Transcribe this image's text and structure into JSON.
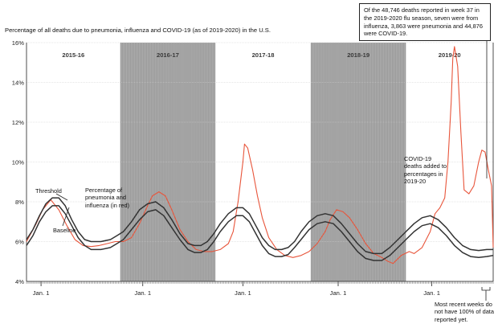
{
  "subtitle": "Percentage of all deaths due to pneumonia, influenza and COVID-19 (as of 2019-2020) in the U.S.",
  "annotation_top": "Of the 48,746 deaths reported in week 37 in the 2019-2020 flu season, seven were from influenza, 3,863 were pneumonia and 44,876 were COVID-19.",
  "annotation_covid": "COVID-19 deaths added to percentages in 2019-20",
  "annotation_recent": "Most recent weeks do not have 100% of data reported yet.",
  "label_threshold": "Threshold",
  "label_baseline": "Baseline",
  "label_percentage": "Percentage of pneumonia and influenza (in red)",
  "colors": {
    "shade": "#9a9a9a",
    "red": "#e8553b",
    "dark": "#333333",
    "grid": "#cccccc"
  },
  "chart_data": {
    "type": "line",
    "x": "weeks 0-288 (approximately weekly, 2015-16 through 2019-20 seasons)",
    "ylim": [
      4,
      16
    ],
    "y_ticks": [
      "4%",
      "6%",
      "8%",
      "10%",
      "12%",
      "14%",
      "16%"
    ],
    "x_tick_labels": [
      "Jan. 1",
      "Jan. 1",
      "Jan. 1",
      "Jan. 1",
      "Jan. 1"
    ],
    "seasons": [
      "2015-16",
      "2016-17",
      "2017-18",
      "2018-19",
      "2019-20"
    ],
    "shaded_seasons": [
      "2016-17",
      "2018-19"
    ],
    "season_boundary_weeks": [
      0,
      58,
      117,
      176,
      235,
      289
    ],
    "jan1_weeks": [
      9,
      72,
      134,
      193,
      251
    ],
    "series": [
      {
        "name": "Percentage of pneumonia and influenza (in red)",
        "points": [
          [
            0,
            6.0
          ],
          [
            6,
            6.9
          ],
          [
            10,
            7.6
          ],
          [
            15,
            8.1
          ],
          [
            20,
            7.6
          ],
          [
            25,
            6.8
          ],
          [
            30,
            6.1
          ],
          [
            35,
            5.8
          ],
          [
            40,
            5.75
          ],
          [
            45,
            5.8
          ],
          [
            50,
            5.9
          ],
          [
            55,
            6.0
          ],
          [
            60,
            6.0
          ],
          [
            65,
            6.2
          ],
          [
            70,
            6.9
          ],
          [
            75,
            7.8
          ],
          [
            78,
            8.3
          ],
          [
            82,
            8.5
          ],
          [
            86,
            8.3
          ],
          [
            90,
            7.6
          ],
          [
            95,
            6.6
          ],
          [
            100,
            6.0
          ],
          [
            105,
            5.6
          ],
          [
            110,
            5.5
          ],
          [
            115,
            5.5
          ],
          [
            120,
            5.6
          ],
          [
            125,
            5.9
          ],
          [
            128,
            6.5
          ],
          [
            131,
            8.0
          ],
          [
            134,
            10.0
          ],
          [
            135,
            10.9
          ],
          [
            137,
            10.7
          ],
          [
            140,
            9.6
          ],
          [
            143,
            8.3
          ],
          [
            146,
            7.2
          ],
          [
            150,
            6.2
          ],
          [
            155,
            5.6
          ],
          [
            160,
            5.3
          ],
          [
            165,
            5.2
          ],
          [
            170,
            5.3
          ],
          [
            175,
            5.5
          ],
          [
            180,
            5.9
          ],
          [
            185,
            6.5
          ],
          [
            188,
            7.1
          ],
          [
            192,
            7.6
          ],
          [
            196,
            7.5
          ],
          [
            200,
            7.2
          ],
          [
            205,
            6.6
          ],
          [
            210,
            5.9
          ],
          [
            215,
            5.4
          ],
          [
            220,
            5.2
          ],
          [
            224,
            5.0
          ],
          [
            227,
            4.9
          ],
          [
            232,
            5.3
          ],
          [
            237,
            5.5
          ],
          [
            240,
            5.4
          ],
          [
            245,
            5.7
          ],
          [
            250,
            6.5
          ],
          [
            253,
            7.4
          ],
          [
            256,
            7.7
          ],
          [
            259,
            8.2
          ],
          [
            261,
            10.0
          ],
          [
            263,
            13.0
          ],
          [
            264,
            15.2
          ],
          [
            265,
            15.8
          ],
          [
            267,
            14.8
          ],
          [
            269,
            11.5
          ],
          [
            271,
            8.6
          ],
          [
            274,
            8.4
          ],
          [
            277,
            8.8
          ],
          [
            280,
            10.0
          ],
          [
            282,
            10.6
          ],
          [
            284,
            10.5
          ],
          [
            286,
            9.6
          ],
          [
            288,
            8.8
          ],
          [
            289,
            5.7
          ]
        ]
      },
      {
        "name": "Threshold",
        "points": [
          [
            0,
            6.1
          ],
          [
            4,
            6.6
          ],
          [
            8,
            7.3
          ],
          [
            12,
            7.9
          ],
          [
            16,
            8.2
          ],
          [
            20,
            8.2
          ],
          [
            24,
            7.8
          ],
          [
            28,
            7.1
          ],
          [
            32,
            6.5
          ],
          [
            36,
            6.1
          ],
          [
            40,
            6.0
          ],
          [
            46,
            6.0
          ],
          [
            52,
            6.1
          ],
          [
            56,
            6.3
          ],
          [
            60,
            6.5
          ],
          [
            65,
            7.0
          ],
          [
            70,
            7.6
          ],
          [
            75,
            7.9
          ],
          [
            80,
            8.0
          ],
          [
            85,
            7.7
          ],
          [
            90,
            7.1
          ],
          [
            95,
            6.4
          ],
          [
            100,
            5.9
          ],
          [
            104,
            5.8
          ],
          [
            108,
            5.8
          ],
          [
            112,
            6.0
          ],
          [
            116,
            6.4
          ],
          [
            120,
            6.9
          ],
          [
            125,
            7.4
          ],
          [
            130,
            7.7
          ],
          [
            134,
            7.7
          ],
          [
            138,
            7.4
          ],
          [
            142,
            6.8
          ],
          [
            146,
            6.2
          ],
          [
            150,
            5.8
          ],
          [
            154,
            5.6
          ],
          [
            158,
            5.6
          ],
          [
            162,
            5.7
          ],
          [
            166,
            6.0
          ],
          [
            170,
            6.5
          ],
          [
            175,
            7.0
          ],
          [
            180,
            7.3
          ],
          [
            185,
            7.4
          ],
          [
            190,
            7.3
          ],
          [
            195,
            6.9
          ],
          [
            200,
            6.4
          ],
          [
            205,
            5.9
          ],
          [
            210,
            5.5
          ],
          [
            215,
            5.4
          ],
          [
            220,
            5.4
          ],
          [
            225,
            5.7
          ],
          [
            230,
            6.1
          ],
          [
            235,
            6.5
          ],
          [
            240,
            6.9
          ],
          [
            245,
            7.2
          ],
          [
            250,
            7.3
          ],
          [
            255,
            7.1
          ],
          [
            260,
            6.7
          ],
          [
            265,
            6.2
          ],
          [
            270,
            5.8
          ],
          [
            275,
            5.6
          ],
          [
            280,
            5.55
          ],
          [
            285,
            5.6
          ],
          [
            289,
            5.6
          ]
        ]
      },
      {
        "name": "Baseline",
        "points": [
          [
            0,
            5.8
          ],
          [
            4,
            6.3
          ],
          [
            8,
            7.0
          ],
          [
            12,
            7.5
          ],
          [
            16,
            7.8
          ],
          [
            20,
            7.8
          ],
          [
            24,
            7.4
          ],
          [
            28,
            6.8
          ],
          [
            32,
            6.2
          ],
          [
            36,
            5.8
          ],
          [
            40,
            5.6
          ],
          [
            46,
            5.6
          ],
          [
            52,
            5.7
          ],
          [
            56,
            5.9
          ],
          [
            60,
            6.1
          ],
          [
            65,
            6.6
          ],
          [
            70,
            7.1
          ],
          [
            75,
            7.5
          ],
          [
            80,
            7.6
          ],
          [
            85,
            7.3
          ],
          [
            90,
            6.7
          ],
          [
            95,
            6.1
          ],
          [
            100,
            5.6
          ],
          [
            104,
            5.45
          ],
          [
            108,
            5.45
          ],
          [
            112,
            5.6
          ],
          [
            116,
            6.0
          ],
          [
            120,
            6.5
          ],
          [
            125,
            7.0
          ],
          [
            130,
            7.3
          ],
          [
            134,
            7.3
          ],
          [
            138,
            7.0
          ],
          [
            142,
            6.4
          ],
          [
            146,
            5.8
          ],
          [
            150,
            5.4
          ],
          [
            154,
            5.25
          ],
          [
            158,
            5.25
          ],
          [
            162,
            5.35
          ],
          [
            166,
            5.7
          ],
          [
            170,
            6.1
          ],
          [
            175,
            6.6
          ],
          [
            180,
            6.9
          ],
          [
            185,
            7.0
          ],
          [
            190,
            6.9
          ],
          [
            195,
            6.5
          ],
          [
            200,
            6.0
          ],
          [
            205,
            5.5
          ],
          [
            210,
            5.15
          ],
          [
            215,
            5.05
          ],
          [
            220,
            5.05
          ],
          [
            225,
            5.3
          ],
          [
            230,
            5.7
          ],
          [
            235,
            6.1
          ],
          [
            240,
            6.5
          ],
          [
            245,
            6.8
          ],
          [
            250,
            6.9
          ],
          [
            255,
            6.7
          ],
          [
            260,
            6.3
          ],
          [
            265,
            5.8
          ],
          [
            270,
            5.45
          ],
          [
            275,
            5.25
          ],
          [
            280,
            5.2
          ],
          [
            285,
            5.25
          ],
          [
            289,
            5.3
          ]
        ]
      }
    ]
  }
}
